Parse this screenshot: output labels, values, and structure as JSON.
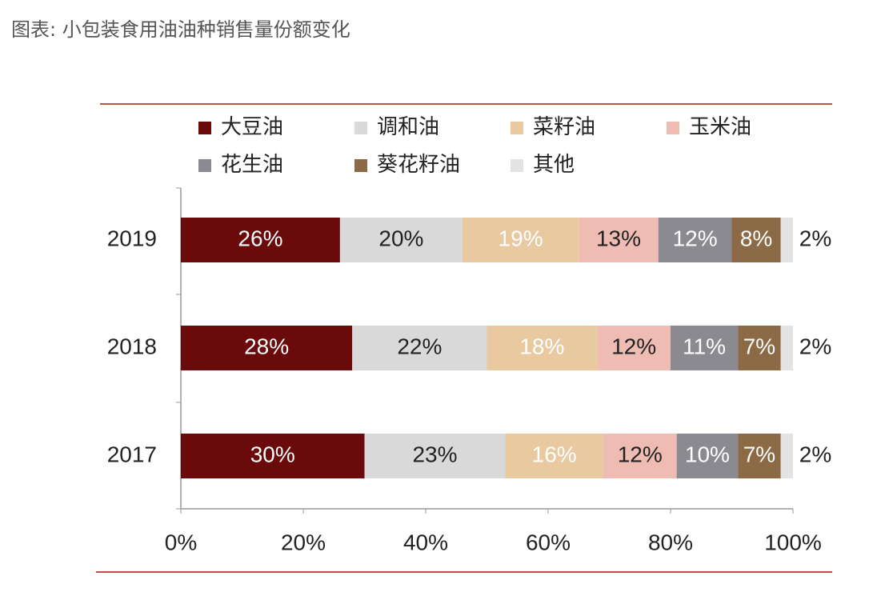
{
  "chart_data": {
    "type": "stacked-bar-horizontal",
    "title": "图表: 小包装食用油油种销售量份额变化",
    "categories": [
      "2019",
      "2018",
      "2017"
    ],
    "series": [
      {
        "name": "大豆油",
        "color": "#6b0a0a",
        "values": [
          26,
          28,
          30
        ],
        "value_labels": [
          "26%",
          "28%",
          "30%"
        ]
      },
      {
        "name": "调和油",
        "color": "#d9d9d9",
        "values": [
          20,
          22,
          23
        ],
        "value_labels": [
          "20%",
          "22%",
          "23%"
        ]
      },
      {
        "name": "菜籽油",
        "color": "#e8c9a0",
        "values": [
          19,
          18,
          16
        ],
        "value_labels": [
          "19%",
          "18%",
          "16%"
        ]
      },
      {
        "name": "玉米油",
        "color": "#efbcb4",
        "values": [
          13,
          12,
          12
        ],
        "value_labels": [
          "13%",
          "12%",
          "12%"
        ]
      },
      {
        "name": "花生油",
        "color": "#8a8a90",
        "values": [
          12,
          11,
          10
        ],
        "value_labels": [
          "12%",
          "11%",
          "10%"
        ]
      },
      {
        "name": "葵花籽油",
        "color": "#8b6a45",
        "values": [
          8,
          7,
          7
        ],
        "value_labels": [
          "8%",
          "7%",
          "7%"
        ]
      },
      {
        "name": "其他",
        "color": "#e3e3e3",
        "values": [
          2,
          2,
          2
        ],
        "value_labels": [
          "2%",
          "2%",
          "2%"
        ]
      }
    ],
    "xlim": [
      0,
      100
    ],
    "xticks": [
      {
        "value": 0,
        "label": "0%"
      },
      {
        "value": 20,
        "label": "20%"
      },
      {
        "value": 40,
        "label": "40%"
      },
      {
        "value": 60,
        "label": "60%"
      },
      {
        "value": 80,
        "label": "80%"
      },
      {
        "value": 100,
        "label": "100%"
      }
    ]
  }
}
